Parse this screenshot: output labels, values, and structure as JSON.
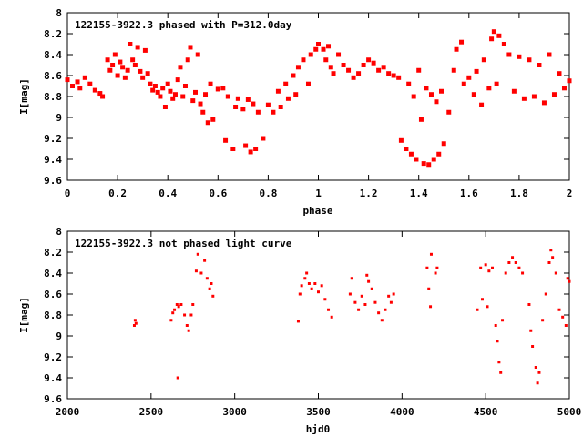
{
  "chart_data": [
    {
      "type": "scatter",
      "title": "122155-3922.3 phased with P=312.0day",
      "xlabel": "phase",
      "ylabel": "I[mag]",
      "xlim": [
        0,
        2
      ],
      "ylim": [
        9.6,
        8
      ],
      "y_inverted": true,
      "xticks": [
        0,
        0.2,
        0.4,
        0.6,
        0.8,
        1,
        1.2,
        1.4,
        1.6,
        1.8,
        2
      ],
      "xtick_labels": [
        "0",
        "0.2",
        "0.4",
        "0.6",
        "0.8",
        "1",
        "1.2",
        "1.4",
        "1.6",
        "1.8",
        "2"
      ],
      "yticks": [
        8,
        8.2,
        8.4,
        8.6,
        8.8,
        9,
        9.2,
        9.4,
        9.6
      ],
      "ytick_labels": [
        "8",
        "8.2",
        "8.4",
        "8.6",
        "8.8",
        "9",
        "9.2",
        "9.4",
        "9.6"
      ],
      "grid": false,
      "marker_color": "#ff0000",
      "series": [
        {
          "points": [
            [
              0.0,
              8.64
            ],
            [
              0.02,
              8.7
            ],
            [
              0.04,
              8.66
            ],
            [
              0.05,
              8.72
            ],
            [
              0.07,
              8.62
            ],
            [
              0.09,
              8.68
            ],
            [
              0.11,
              8.74
            ],
            [
              0.13,
              8.77
            ],
            [
              0.14,
              8.8
            ],
            [
              0.16,
              8.45
            ],
            [
              0.17,
              8.55
            ],
            [
              0.18,
              8.5
            ],
            [
              0.19,
              8.4
            ],
            [
              0.2,
              8.6
            ],
            [
              0.21,
              8.47
            ],
            [
              0.22,
              8.52
            ],
            [
              0.23,
              8.62
            ],
            [
              0.24,
              8.55
            ],
            [
              0.25,
              8.3
            ],
            [
              0.26,
              8.45
            ],
            [
              0.27,
              8.5
            ],
            [
              0.28,
              8.33
            ],
            [
              0.29,
              8.56
            ],
            [
              0.3,
              8.62
            ],
            [
              0.31,
              8.36
            ],
            [
              0.32,
              8.58
            ],
            [
              0.33,
              8.68
            ],
            [
              0.34,
              8.74
            ],
            [
              0.35,
              8.7
            ],
            [
              0.36,
              8.76
            ],
            [
              0.37,
              8.8
            ],
            [
              0.38,
              8.72
            ],
            [
              0.39,
              8.9
            ],
            [
              0.4,
              8.68
            ],
            [
              0.41,
              8.75
            ],
            [
              0.42,
              8.82
            ],
            [
              0.43,
              8.78
            ],
            [
              0.44,
              8.64
            ],
            [
              0.45,
              8.52
            ],
            [
              0.46,
              8.8
            ],
            [
              0.47,
              8.7
            ],
            [
              0.48,
              8.45
            ],
            [
              0.49,
              8.33
            ],
            [
              0.5,
              8.84
            ],
            [
              0.51,
              8.76
            ],
            [
              0.52,
              8.4
            ],
            [
              0.53,
              8.87
            ],
            [
              0.54,
              8.95
            ],
            [
              0.55,
              8.78
            ],
            [
              0.56,
              9.05
            ],
            [
              0.57,
              8.68
            ],
            [
              0.58,
              9.02
            ],
            [
              0.6,
              8.73
            ],
            [
              0.62,
              8.72
            ],
            [
              0.63,
              9.22
            ],
            [
              0.64,
              8.8
            ],
            [
              0.66,
              9.3
            ],
            [
              0.67,
              8.9
            ],
            [
              0.68,
              8.82
            ],
            [
              0.7,
              8.92
            ],
            [
              0.71,
              9.27
            ],
            [
              0.72,
              8.83
            ],
            [
              0.73,
              9.33
            ],
            [
              0.74,
              8.87
            ],
            [
              0.75,
              9.3
            ],
            [
              0.76,
              8.95
            ],
            [
              0.78,
              9.2
            ],
            [
              0.8,
              8.88
            ],
            [
              0.82,
              8.95
            ],
            [
              0.84,
              8.75
            ],
            [
              0.85,
              8.9
            ],
            [
              0.87,
              8.68
            ],
            [
              0.88,
              8.82
            ],
            [
              0.9,
              8.6
            ],
            [
              0.91,
              8.78
            ],
            [
              0.92,
              8.52
            ],
            [
              0.94,
              8.45
            ],
            [
              0.96,
              8.68
            ],
            [
              0.97,
              8.4
            ],
            [
              0.99,
              8.35
            ],
            [
              1.0,
              8.3
            ],
            [
              1.02,
              8.35
            ],
            [
              1.03,
              8.45
            ],
            [
              1.04,
              8.32
            ],
            [
              1.05,
              8.52
            ],
            [
              1.06,
              8.58
            ],
            [
              1.08,
              8.4
            ],
            [
              1.1,
              8.5
            ],
            [
              1.12,
              8.55
            ],
            [
              1.14,
              8.62
            ],
            [
              1.16,
              8.58
            ],
            [
              1.18,
              8.5
            ],
            [
              1.2,
              8.45
            ],
            [
              1.22,
              8.48
            ],
            [
              1.24,
              8.55
            ],
            [
              1.26,
              8.52
            ],
            [
              1.28,
              8.58
            ],
            [
              1.3,
              8.6
            ],
            [
              1.32,
              8.62
            ],
            [
              1.33,
              9.22
            ],
            [
              1.35,
              9.3
            ],
            [
              1.36,
              8.68
            ],
            [
              1.37,
              9.35
            ],
            [
              1.38,
              8.8
            ],
            [
              1.39,
              9.4
            ],
            [
              1.4,
              8.55
            ],
            [
              1.41,
              9.02
            ],
            [
              1.42,
              9.44
            ],
            [
              1.43,
              8.72
            ],
            [
              1.44,
              9.45
            ],
            [
              1.45,
              8.78
            ],
            [
              1.46,
              9.4
            ],
            [
              1.47,
              8.85
            ],
            [
              1.48,
              9.35
            ],
            [
              1.49,
              8.75
            ],
            [
              1.5,
              9.25
            ],
            [
              1.52,
              8.95
            ],
            [
              1.54,
              8.55
            ],
            [
              1.55,
              8.35
            ],
            [
              1.57,
              8.28
            ],
            [
              1.58,
              8.68
            ],
            [
              1.6,
              8.62
            ],
            [
              1.62,
              8.78
            ],
            [
              1.63,
              8.56
            ],
            [
              1.65,
              8.88
            ],
            [
              1.66,
              8.45
            ],
            [
              1.68,
              8.72
            ],
            [
              1.69,
              8.25
            ],
            [
              1.7,
              8.18
            ],
            [
              1.71,
              8.68
            ],
            [
              1.72,
              8.22
            ],
            [
              1.74,
              8.3
            ],
            [
              1.76,
              8.4
            ],
            [
              1.78,
              8.75
            ],
            [
              1.8,
              8.42
            ],
            [
              1.82,
              8.82
            ],
            [
              1.84,
              8.45
            ],
            [
              1.86,
              8.8
            ],
            [
              1.88,
              8.5
            ],
            [
              1.9,
              8.86
            ],
            [
              1.92,
              8.4
            ],
            [
              1.94,
              8.78
            ],
            [
              1.96,
              8.58
            ],
            [
              1.98,
              8.72
            ],
            [
              2.0,
              8.65
            ]
          ]
        }
      ]
    },
    {
      "type": "scatter",
      "title": "122155-3922.3 not phased light curve",
      "xlabel": "hjd0",
      "ylabel": "I[mag]",
      "xlim": [
        2000,
        5000
      ],
      "ylim": [
        9.6,
        8
      ],
      "y_inverted": true,
      "xticks": [
        2000,
        2500,
        3000,
        3500,
        4000,
        4500,
        5000
      ],
      "xtick_labels": [
        "2000",
        "2500",
        "3000",
        "3500",
        "4000",
        "4500",
        "5000"
      ],
      "yticks": [
        8,
        8.2,
        8.4,
        8.6,
        8.8,
        9,
        9.2,
        9.4,
        9.6
      ],
      "ytick_labels": [
        "8",
        "8.2",
        "8.4",
        "8.6",
        "8.8",
        "9",
        "9.2",
        "9.4",
        "9.6"
      ],
      "grid": false,
      "marker_color": "#ff0000",
      "series": [
        {
          "points": [
            [
              2400,
              8.9
            ],
            [
              2405,
              8.85
            ],
            [
              2410,
              8.88
            ],
            [
              2620,
              8.85
            ],
            [
              2630,
              8.78
            ],
            [
              2640,
              8.75
            ],
            [
              2655,
              8.7
            ],
            [
              2660,
              9.4
            ],
            [
              2665,
              8.72
            ],
            [
              2680,
              8.7
            ],
            [
              2700,
              8.8
            ],
            [
              2715,
              8.9
            ],
            [
              2725,
              8.95
            ],
            [
              2740,
              8.8
            ],
            [
              2750,
              8.7
            ],
            [
              2770,
              8.38
            ],
            [
              2780,
              8.22
            ],
            [
              2800,
              8.4
            ],
            [
              2820,
              8.28
            ],
            [
              2835,
              8.45
            ],
            [
              2850,
              8.55
            ],
            [
              2860,
              8.5
            ],
            [
              2870,
              8.62
            ],
            [
              3380,
              8.86
            ],
            [
              3390,
              8.6
            ],
            [
              3400,
              8.52
            ],
            [
              3420,
              8.45
            ],
            [
              3430,
              8.4
            ],
            [
              3445,
              8.5
            ],
            [
              3460,
              8.55
            ],
            [
              3480,
              8.5
            ],
            [
              3500,
              8.58
            ],
            [
              3520,
              8.52
            ],
            [
              3540,
              8.65
            ],
            [
              3560,
              8.75
            ],
            [
              3580,
              8.82
            ],
            [
              3690,
              8.6
            ],
            [
              3700,
              8.45
            ],
            [
              3720,
              8.68
            ],
            [
              3740,
              8.75
            ],
            [
              3760,
              8.62
            ],
            [
              3780,
              8.7
            ],
            [
              3790,
              8.42
            ],
            [
              3800,
              8.48
            ],
            [
              3820,
              8.55
            ],
            [
              3840,
              8.68
            ],
            [
              3860,
              8.78
            ],
            [
              3880,
              8.85
            ],
            [
              3900,
              8.75
            ],
            [
              3920,
              8.62
            ],
            [
              3935,
              8.68
            ],
            [
              3950,
              8.6
            ],
            [
              4150,
              8.35
            ],
            [
              4160,
              8.55
            ],
            [
              4170,
              8.72
            ],
            [
              4175,
              8.22
            ],
            [
              4200,
              8.4
            ],
            [
              4210,
              8.35
            ],
            [
              4450,
              8.75
            ],
            [
              4470,
              8.35
            ],
            [
              4480,
              8.65
            ],
            [
              4500,
              8.32
            ],
            [
              4510,
              8.72
            ],
            [
              4520,
              8.38
            ],
            [
              4540,
              8.35
            ],
            [
              4560,
              8.9
            ],
            [
              4570,
              9.05
            ],
            [
              4580,
              9.25
            ],
            [
              4590,
              9.35
            ],
            [
              4600,
              8.85
            ],
            [
              4620,
              8.4
            ],
            [
              4640,
              8.3
            ],
            [
              4660,
              8.25
            ],
            [
              4680,
              8.3
            ],
            [
              4700,
              8.35
            ],
            [
              4720,
              8.4
            ],
            [
              4760,
              8.7
            ],
            [
              4770,
              8.95
            ],
            [
              4780,
              9.1
            ],
            [
              4800,
              9.3
            ],
            [
              4810,
              9.45
            ],
            [
              4820,
              9.35
            ],
            [
              4840,
              8.85
            ],
            [
              4860,
              8.6
            ],
            [
              4880,
              8.3
            ],
            [
              4890,
              8.18
            ],
            [
              4900,
              8.25
            ],
            [
              4920,
              8.4
            ],
            [
              4940,
              8.75
            ],
            [
              4960,
              8.82
            ],
            [
              4980,
              8.9
            ],
            [
              4990,
              8.45
            ],
            [
              5000,
              8.48
            ]
          ]
        }
      ]
    }
  ]
}
